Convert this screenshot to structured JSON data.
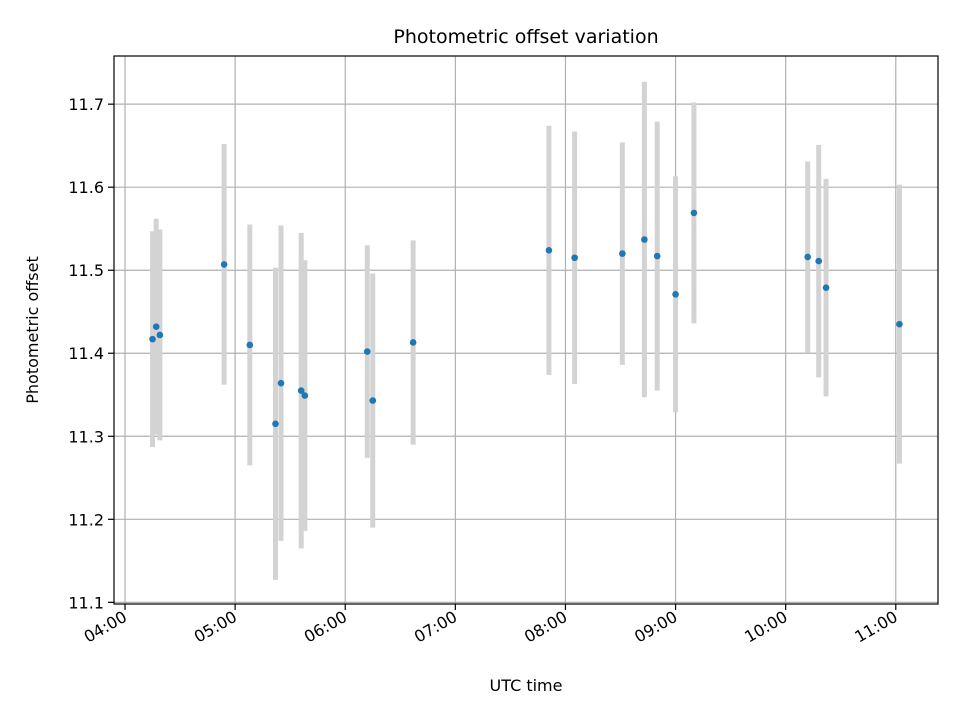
{
  "chart_data": {
    "type": "scatter",
    "title": "Photometric offset variation",
    "xlabel": "UTC time",
    "ylabel": "Photometric offset",
    "x_unit": "UTC time (HH:MM)",
    "xlim": [
      "03:54",
      "11:23"
    ],
    "ylim": [
      11.098,
      11.758
    ],
    "x_ticks": [
      "04:00",
      "05:00",
      "06:00",
      "07:00",
      "08:00",
      "09:00",
      "10:00",
      "11:00"
    ],
    "y_ticks": [
      11.1,
      11.2,
      11.3,
      11.4,
      11.5,
      11.6,
      11.7
    ],
    "y_tick_labels": [
      "11.1",
      "11.2",
      "11.3",
      "11.4",
      "11.5",
      "11.6",
      "11.7"
    ],
    "grid": true,
    "point_color": "#1f77b4",
    "errorbar_color": "#d3d3d3",
    "points": [
      {
        "x": "04:15",
        "y": 11.417,
        "err": 0.13
      },
      {
        "x": "04:17",
        "y": 11.432,
        "err": 0.13
      },
      {
        "x": "04:19",
        "y": 11.422,
        "err": 0.127
      },
      {
        "x": "04:54",
        "y": 11.507,
        "err": 0.145
      },
      {
        "x": "05:08",
        "y": 11.41,
        "err": 0.145
      },
      {
        "x": "05:22",
        "y": 11.315,
        "err": 0.188
      },
      {
        "x": "05:25",
        "y": 11.364,
        "err": 0.19
      },
      {
        "x": "05:36",
        "y": 11.355,
        "err": 0.19
      },
      {
        "x": "05:38",
        "y": 11.349,
        "err": 0.163
      },
      {
        "x": "06:12",
        "y": 11.402,
        "err": 0.128
      },
      {
        "x": "06:15",
        "y": 11.343,
        "err": 0.153
      },
      {
        "x": "06:37",
        "y": 11.413,
        "err": 0.123
      },
      {
        "x": "07:51",
        "y": 11.524,
        "err": 0.15
      },
      {
        "x": "08:05",
        "y": 11.515,
        "err": 0.152
      },
      {
        "x": "08:31",
        "y": 11.52,
        "err": 0.134
      },
      {
        "x": "08:43",
        "y": 11.537,
        "err": 0.19
      },
      {
        "x": "08:50",
        "y": 11.517,
        "err": 0.162
      },
      {
        "x": "09:00",
        "y": 11.471,
        "err": 0.142
      },
      {
        "x": "09:10",
        "y": 11.569,
        "err": 0.133
      },
      {
        "x": "10:12",
        "y": 11.516,
        "err": 0.115
      },
      {
        "x": "10:18",
        "y": 11.511,
        "err": 0.14
      },
      {
        "x": "10:22",
        "y": 11.479,
        "err": 0.131
      },
      {
        "x": "11:02",
        "y": 11.435,
        "err": 0.168
      }
    ]
  }
}
